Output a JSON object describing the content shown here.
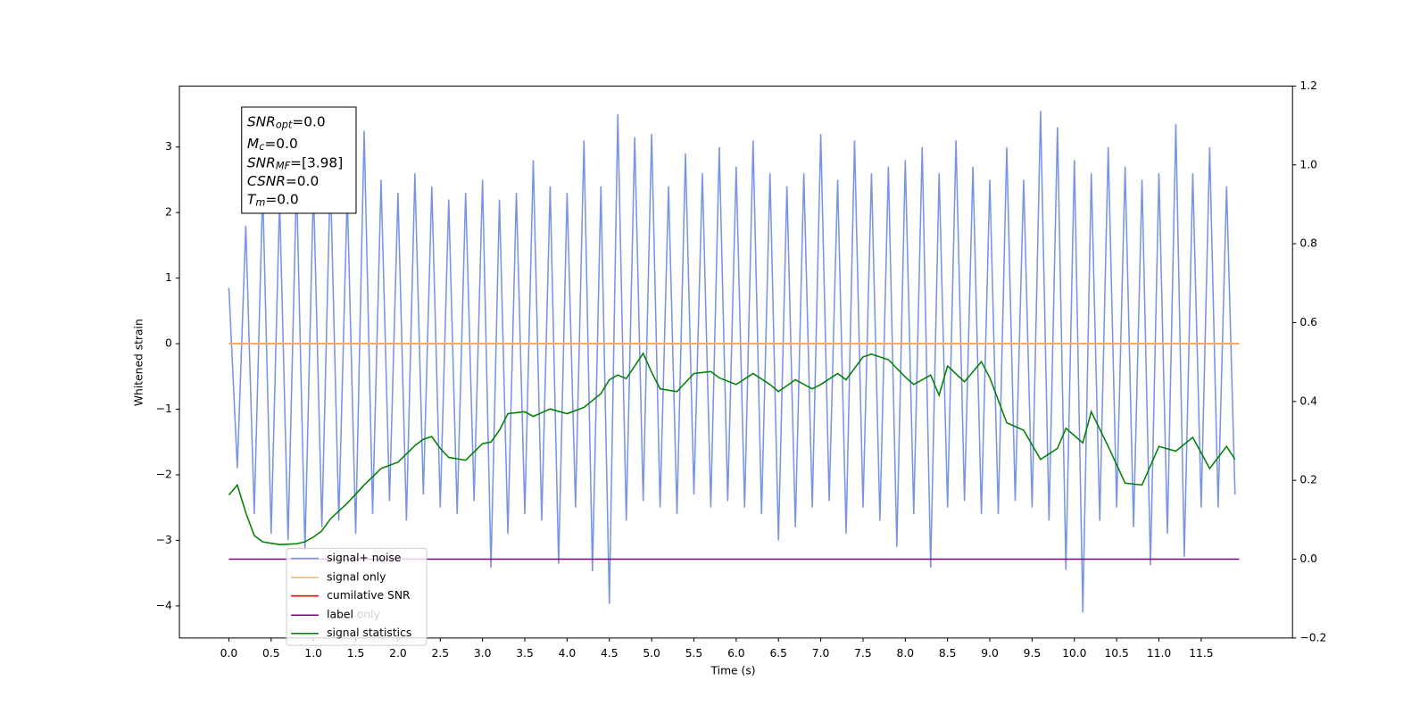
{
  "chart_data": {
    "type": "line",
    "xlabel": "Time (s)",
    "ylabel": "Whitened strain",
    "xlim": [
      -0.585,
      12.58
    ],
    "ylim": [
      -4.49,
      3.93
    ],
    "y2lim": [
      -0.2,
      1.2
    ],
    "xticks": [
      {
        "value": 0,
        "label": "0.0"
      },
      0.5,
      {
        "value": 1,
        "label": "1.0"
      },
      1.5,
      {
        "value": 2,
        "label": "2.0"
      },
      2.5,
      {
        "value": 3,
        "label": "3.0"
      },
      3.5,
      {
        "value": 4,
        "label": "4.0"
      },
      4.5,
      {
        "value": 5,
        "label": "5.0"
      },
      5.5,
      {
        "value": 6,
        "label": "6.0"
      },
      6.5,
      {
        "value": 7,
        "label": "7.0"
      },
      7.5,
      {
        "value": 8,
        "label": "8.0"
      },
      8.5,
      {
        "value": 9,
        "label": "9.0"
      },
      9.5,
      {
        "value": 10,
        "label": "10.0"
      },
      10.5,
      {
        "value": 11,
        "label": "11.0"
      },
      11.5
    ],
    "yticks": [
      {
        "value": -4,
        "label": "−4"
      },
      {
        "value": -3,
        "label": "−3"
      },
      {
        "value": -2,
        "label": "−2"
      },
      {
        "value": -1,
        "label": "−1"
      },
      0,
      1,
      2,
      3
    ],
    "y2ticks": [
      {
        "value": -0.2,
        "label": "−0.2"
      },
      {
        "value": 0,
        "label": "0.0"
      },
      0.2,
      0.4,
      0.6,
      0.8,
      {
        "value": 1,
        "label": "1.0"
      },
      1.2
    ],
    "annotation": [
      {
        "base": "SNR",
        "sub": "opt",
        "text": "=0.0"
      },
      {
        "base": "M",
        "sub": "c",
        "text": "=0.0"
      },
      {
        "base": "SNR",
        "sub": "MF",
        "text": "=[3.98]"
      },
      {
        "base": "CSNR",
        "text": "=0.0"
      },
      {
        "base": "T",
        "sub": "m",
        "text": "=0.0"
      }
    ],
    "legend_overlay": "label only",
    "series": [
      {
        "name": "signal+ noise",
        "color": "#7893e8",
        "axis": "y",
        "x": [
          0,
          0.1,
          0.2,
          0.3,
          0.4,
          0.5,
          0.6,
          0.7,
          0.8,
          0.9,
          1,
          1.1,
          1.2,
          1.3,
          1.4,
          1.5,
          1.6,
          1.7,
          1.8,
          1.9,
          2,
          2.1,
          2.2,
          2.3,
          2.4,
          2.5,
          2.6,
          2.7,
          2.8,
          2.9,
          3,
          3.1,
          3.2,
          3.3,
          3.4,
          3.5,
          3.6,
          3.7,
          3.8,
          3.9,
          4,
          4.1,
          4.2,
          4.3,
          4.4,
          4.5,
          4.6,
          4.7,
          4.8,
          4.9,
          5,
          5.1,
          5.2,
          5.3,
          5.4,
          5.5,
          5.6,
          5.7,
          5.8,
          5.9,
          6,
          6.1,
          6.2,
          6.3,
          6.4,
          6.5,
          6.6,
          6.7,
          6.8,
          6.9,
          7,
          7.1,
          7.2,
          7.3,
          7.4,
          7.5,
          7.6,
          7.7,
          7.8,
          7.9,
          8,
          8.1,
          8.2,
          8.3,
          8.4,
          8.5,
          8.6,
          8.7,
          8.8,
          8.9,
          9,
          9.1,
          9.2,
          9.3,
          9.4,
          9.5,
          9.6,
          9.7,
          9.8,
          9.9,
          10,
          10.1,
          10.2,
          10.3,
          10.4,
          10.5,
          10.6,
          10.7,
          10.8,
          10.9,
          11,
          11.1,
          11.2,
          11.3,
          11.4,
          11.5,
          11.6,
          11.7,
          11.8,
          11.9
        ],
        "values": [
          0.85,
          -1.9,
          1.8,
          -2.6,
          2.35,
          -2.9,
          2.2,
          -3.0,
          2.5,
          -3.15,
          2.4,
          -2.8,
          2.6,
          -2.7,
          2.3,
          -2.9,
          3.25,
          -2.6,
          2.5,
          -2.4,
          2.3,
          -2.7,
          2.6,
          -2.3,
          2.4,
          -2.5,
          2.2,
          -2.6,
          2.3,
          -2.4,
          2.5,
          -3.42,
          2.2,
          -2.9,
          2.3,
          -2.6,
          2.8,
          -2.7,
          2.4,
          -3.36,
          2.3,
          -2.5,
          3.1,
          -3.47,
          2.4,
          -3.97,
          3.5,
          -2.7,
          3.15,
          -2.4,
          3.2,
          -2.5,
          2.4,
          -2.6,
          2.9,
          -2.3,
          2.6,
          -2.5,
          3.0,
          -2.4,
          2.7,
          -2.5,
          3.1,
          -2.6,
          2.6,
          -3.0,
          2.4,
          -2.8,
          2.6,
          -2.5,
          3.2,
          -2.4,
          2.5,
          -2.9,
          3.1,
          -2.5,
          2.6,
          -2.7,
          2.7,
          -3.1,
          2.8,
          -2.6,
          3.0,
          -3.42,
          2.6,
          -2.5,
          3.1,
          -2.4,
          2.7,
          -2.6,
          2.5,
          -2.6,
          3.0,
          -2.4,
          2.5,
          -2.5,
          3.55,
          -2.7,
          3.3,
          -3.45,
          2.8,
          -4.1,
          2.6,
          -2.7,
          3.0,
          -2.5,
          2.7,
          -2.8,
          2.5,
          -3.38,
          2.6,
          -2.9,
          3.35,
          -3.25,
          2.6,
          -2.5,
          3.0,
          -2.5,
          2.4,
          -2.3
        ]
      },
      {
        "name": "signal only",
        "color": "#f5b96b",
        "axis": "y",
        "x": [
          0,
          11.95
        ],
        "values": [
          0,
          0
        ]
      },
      {
        "name": "cumilative SNR",
        "color": "#ff0000",
        "axis": "y",
        "x": [
          0,
          11.95
        ],
        "values": [
          0,
          0
        ]
      },
      {
        "name": "label",
        "color": "#800080",
        "axis": "y2",
        "x": [
          0,
          11.95
        ],
        "values": [
          0,
          0
        ]
      },
      {
        "name": "signal statistics",
        "color": "#008000",
        "axis": "y2",
        "x": [
          0,
          0.1,
          0.2,
          0.3,
          0.4,
          0.6,
          0.8,
          0.9,
          1.0,
          1.1,
          1.2,
          1.4,
          1.6,
          1.8,
          2.0,
          2.1,
          2.2,
          2.3,
          2.4,
          2.5,
          2.6,
          2.8,
          3.0,
          3.1,
          3.2,
          3.3,
          3.5,
          3.6,
          3.8,
          4.0,
          4.2,
          4.4,
          4.5,
          4.6,
          4.7,
          4.8,
          4.9,
          5.0,
          5.1,
          5.3,
          5.5,
          5.7,
          5.8,
          6.0,
          6.2,
          6.4,
          6.5,
          6.7,
          6.9,
          7.0,
          7.2,
          7.3,
          7.5,
          7.6,
          7.8,
          8.0,
          8.1,
          8.3,
          8.4,
          8.5,
          8.7,
          8.9,
          9.0,
          9.2,
          9.4,
          9.6,
          9.8,
          9.9,
          10.1,
          10.2,
          10.4,
          10.6,
          10.8,
          11.0,
          11.2,
          11.4,
          11.6,
          11.8,
          11.9
        ],
        "values": [
          0.163,
          0.188,
          0.118,
          0.06,
          0.044,
          0.037,
          0.039,
          0.044,
          0.056,
          0.072,
          0.102,
          0.142,
          0.188,
          0.23,
          0.246,
          0.267,
          0.288,
          0.304,
          0.311,
          0.281,
          0.258,
          0.251,
          0.293,
          0.297,
          0.327,
          0.369,
          0.374,
          0.362,
          0.381,
          0.369,
          0.385,
          0.42,
          0.455,
          0.467,
          0.458,
          0.49,
          0.522,
          0.474,
          0.432,
          0.425,
          0.471,
          0.476,
          0.46,
          0.443,
          0.471,
          0.443,
          0.425,
          0.455,
          0.432,
          0.443,
          0.471,
          0.455,
          0.513,
          0.52,
          0.506,
          0.462,
          0.443,
          0.467,
          0.416,
          0.49,
          0.45,
          0.501,
          0.46,
          0.346,
          0.327,
          0.253,
          0.281,
          0.332,
          0.295,
          0.374,
          0.286,
          0.193,
          0.188,
          0.286,
          0.274,
          0.309,
          0.23,
          0.286,
          0.253
        ]
      }
    ],
    "grid": false
  }
}
